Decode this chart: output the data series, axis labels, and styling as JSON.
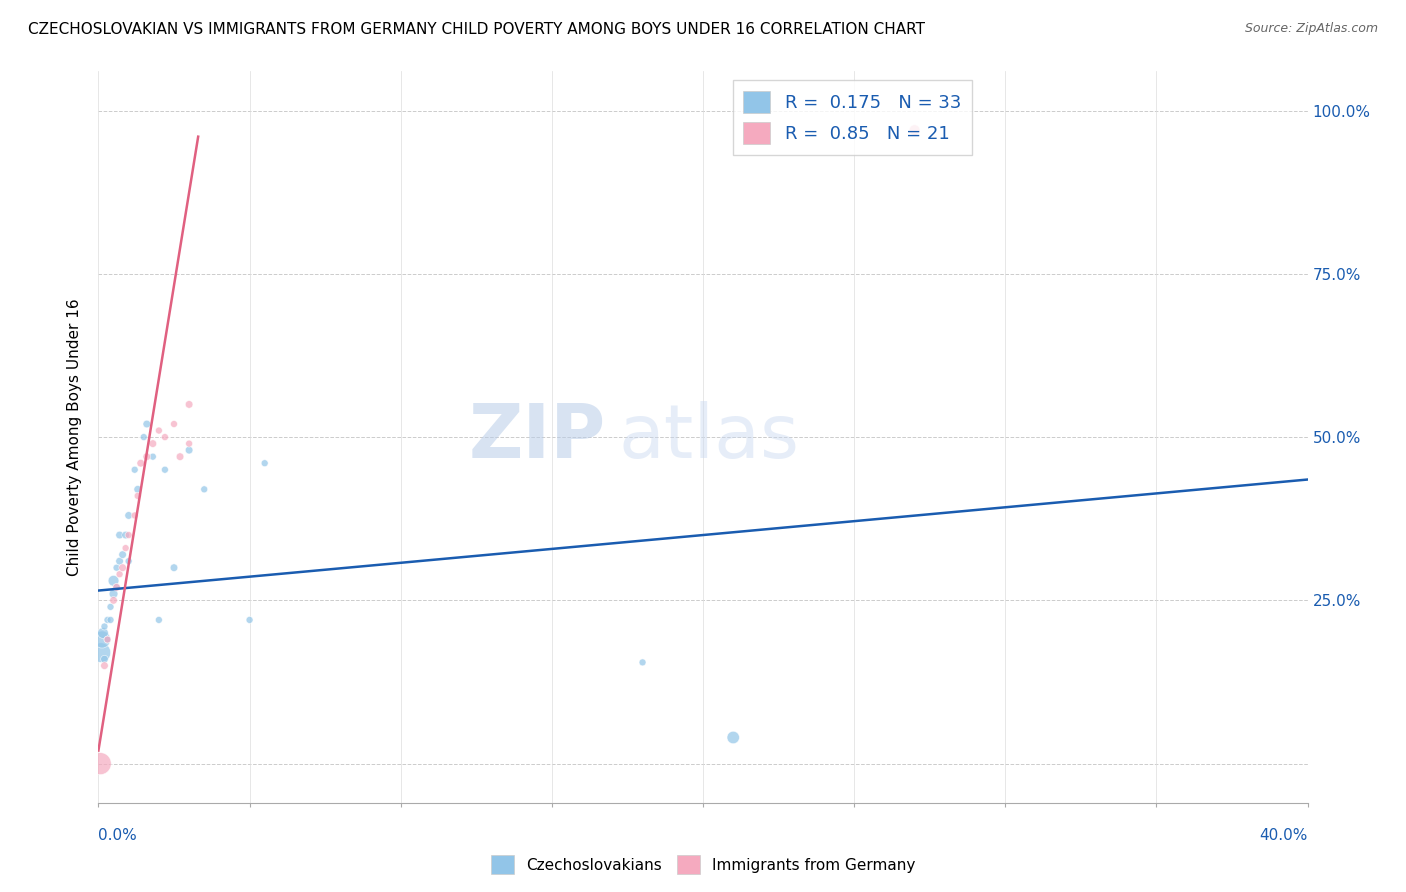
{
  "title": "CZECHOSLOVAKIAN VS IMMIGRANTS FROM GERMANY CHILD POVERTY AMONG BOYS UNDER 16 CORRELATION CHART",
  "source": "Source: ZipAtlas.com",
  "ylabel": "Child Poverty Among Boys Under 16",
  "r_blue": 0.175,
  "n_blue": 33,
  "r_pink": 0.85,
  "n_pink": 21,
  "blue_color": "#92C5E8",
  "pink_color": "#F5AABF",
  "blue_line_color": "#1A5CB0",
  "pink_line_color": "#E06080",
  "legend_label_blue": "Czechoslovakians",
  "legend_label_pink": "Immigrants from Germany",
  "watermark_zip": "ZIP",
  "watermark_atlas": "atlas",
  "xmin": 0.0,
  "xmax": 0.4,
  "ymin": -0.06,
  "ymax": 1.06,
  "ytick_values": [
    0.0,
    0.25,
    0.5,
    0.75,
    1.0
  ],
  "blue_scatter_x": [
    0.0008,
    0.0012,
    0.0015,
    0.002,
    0.002,
    0.003,
    0.003,
    0.004,
    0.004,
    0.005,
    0.005,
    0.006,
    0.006,
    0.007,
    0.007,
    0.008,
    0.009,
    0.01,
    0.01,
    0.012,
    0.013,
    0.015,
    0.016,
    0.018,
    0.02,
    0.022,
    0.025,
    0.03,
    0.035,
    0.05,
    0.055,
    0.18,
    0.21
  ],
  "blue_scatter_y": [
    0.17,
    0.19,
    0.2,
    0.16,
    0.21,
    0.19,
    0.22,
    0.24,
    0.22,
    0.28,
    0.26,
    0.3,
    0.27,
    0.31,
    0.35,
    0.32,
    0.35,
    0.38,
    0.31,
    0.45,
    0.42,
    0.5,
    0.52,
    0.47,
    0.22,
    0.45,
    0.3,
    0.48,
    0.42,
    0.22,
    0.46,
    0.155,
    0.04
  ],
  "blue_scatter_size": [
    200,
    150,
    60,
    30,
    25,
    25,
    25,
    25,
    25,
    60,
    40,
    25,
    25,
    30,
    30,
    30,
    30,
    30,
    25,
    25,
    30,
    25,
    30,
    25,
    25,
    25,
    30,
    30,
    25,
    25,
    25,
    25,
    80
  ],
  "pink_scatter_x": [
    0.0006,
    0.002,
    0.003,
    0.005,
    0.006,
    0.007,
    0.008,
    0.009,
    0.01,
    0.012,
    0.013,
    0.014,
    0.016,
    0.018,
    0.02,
    0.022,
    0.025,
    0.027,
    0.03,
    0.03,
    0.27
  ],
  "pink_scatter_y": [
    0.0,
    0.15,
    0.19,
    0.25,
    0.27,
    0.29,
    0.3,
    0.33,
    0.35,
    0.38,
    0.41,
    0.46,
    0.47,
    0.49,
    0.51,
    0.5,
    0.52,
    0.47,
    0.49,
    0.55,
    0.97
  ],
  "pink_scatter_size": [
    250,
    30,
    25,
    30,
    30,
    25,
    30,
    25,
    25,
    25,
    25,
    30,
    30,
    30,
    25,
    25,
    25,
    30,
    25,
    30,
    60
  ],
  "blue_line_x0": 0.0,
  "blue_line_x1": 0.4,
  "blue_line_y0": 0.265,
  "blue_line_y1": 0.435,
  "pink_line_x0": 0.0,
  "pink_line_x1": 0.033,
  "pink_line_y0": 0.02,
  "pink_line_y1": 0.96
}
